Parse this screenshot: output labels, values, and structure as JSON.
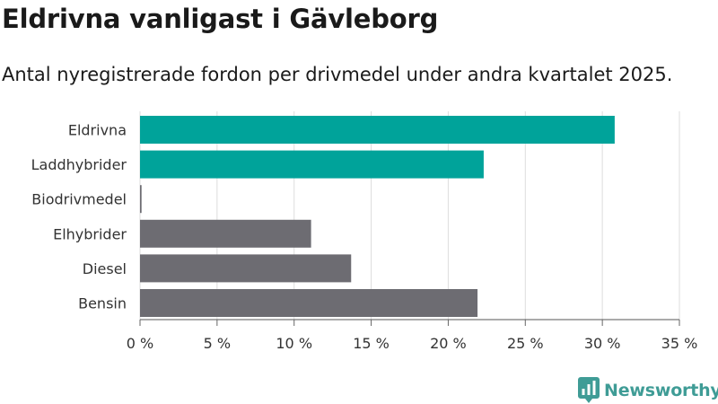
{
  "title": "Eldrivna vanligast i Gävleborg",
  "subtitle": "Antal nyregistrerade fordon per drivmedel under andra kvartalet 2025.",
  "brand": {
    "name": "Newsworthy",
    "color": "#3f9c96",
    "icon": "bar-chart-bubble-icon"
  },
  "chart_data": {
    "type": "bar",
    "orientation": "horizontal",
    "categories": [
      "Eldrivna",
      "Laddhybrider",
      "Biodrivmedel",
      "Elhybrider",
      "Diesel",
      "Bensin"
    ],
    "values": [
      30.8,
      22.3,
      0.1,
      11.1,
      13.7,
      21.9
    ],
    "colors": [
      "#00a39a",
      "#00a39a",
      "#6d6c72",
      "#6d6c72",
      "#6d6c72",
      "#6d6c72"
    ],
    "xlim": [
      0,
      35
    ],
    "xticks": [
      0,
      5,
      10,
      15,
      20,
      25,
      30,
      35
    ],
    "xtick_labels": [
      "0 %",
      "5 %",
      "10 %",
      "15 %",
      "20 %",
      "25 %",
      "30 %",
      "35 %"
    ],
    "xlabel": "",
    "ylabel": "",
    "grid": true
  }
}
